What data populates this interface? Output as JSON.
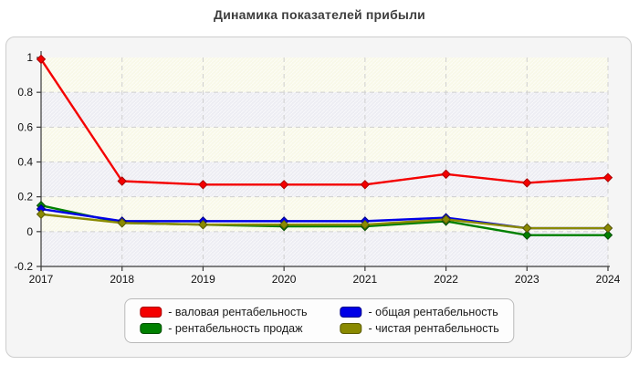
{
  "page": {
    "title": "Динамика показателей прибыли"
  },
  "chart_data": {
    "type": "line",
    "title": "Динамика показателей прибыли",
    "x": [
      2017,
      2018,
      2019,
      2020,
      2021,
      2022,
      2023,
      2024
    ],
    "series": [
      {
        "name": "валовая рентабельность",
        "color": "#f40000",
        "edge": "#a80000",
        "values": [
          0.99,
          0.29,
          0.27,
          0.27,
          0.27,
          0.33,
          0.28,
          0.31
        ]
      },
      {
        "name": "общая рентабельность",
        "color": "#0000e6",
        "edge": "#000088",
        "values": [
          0.13,
          0.06,
          0.06,
          0.06,
          0.06,
          0.08,
          0.02,
          0.02
        ]
      },
      {
        "name": "рентабельность продаж",
        "color": "#008000",
        "edge": "#004d00",
        "values": [
          0.15,
          0.05,
          0.04,
          0.03,
          0.03,
          0.06,
          -0.02,
          -0.02
        ]
      },
      {
        "name": "чистая рентабельность",
        "color": "#8a8a00",
        "edge": "#5c5c00",
        "values": [
          0.1,
          0.05,
          0.04,
          0.04,
          0.04,
          0.07,
          0.02,
          0.02
        ]
      }
    ],
    "ylim": [
      -0.2,
      1.0
    ],
    "yticks": [
      1,
      0.8,
      0.6,
      0.4,
      0.2,
      0,
      -0.2
    ],
    "ytick_labels": [
      "1",
      "0.8",
      "0.6",
      "0.4",
      "0.2",
      "0",
      "-0.2"
    ],
    "xtick_labels": [
      "2017",
      "2018",
      "2019",
      "2020",
      "2021",
      "2022",
      "2023",
      "2024"
    ],
    "grid": "dashed-both",
    "legend_position": "bottom",
    "band_colors": [
      "#f8f8e8",
      "#ededf3"
    ],
    "grid_color": "#cfcfcf",
    "axis_color": "#3a3a3a",
    "tick_label_color": "#111111"
  },
  "legend": {
    "items": [
      {
        "label": "- валовая рентабельность",
        "color": "#f40000",
        "edge": "#a80000"
      },
      {
        "label": "- общая рентабельность",
        "color": "#0000e6",
        "edge": "#000088"
      },
      {
        "label": "- рентабельность продаж",
        "color": "#008000",
        "edge": "#004d00"
      },
      {
        "label": "- чистая рентабельность",
        "color": "#8a8a00",
        "edge": "#5c5c00"
      }
    ]
  }
}
